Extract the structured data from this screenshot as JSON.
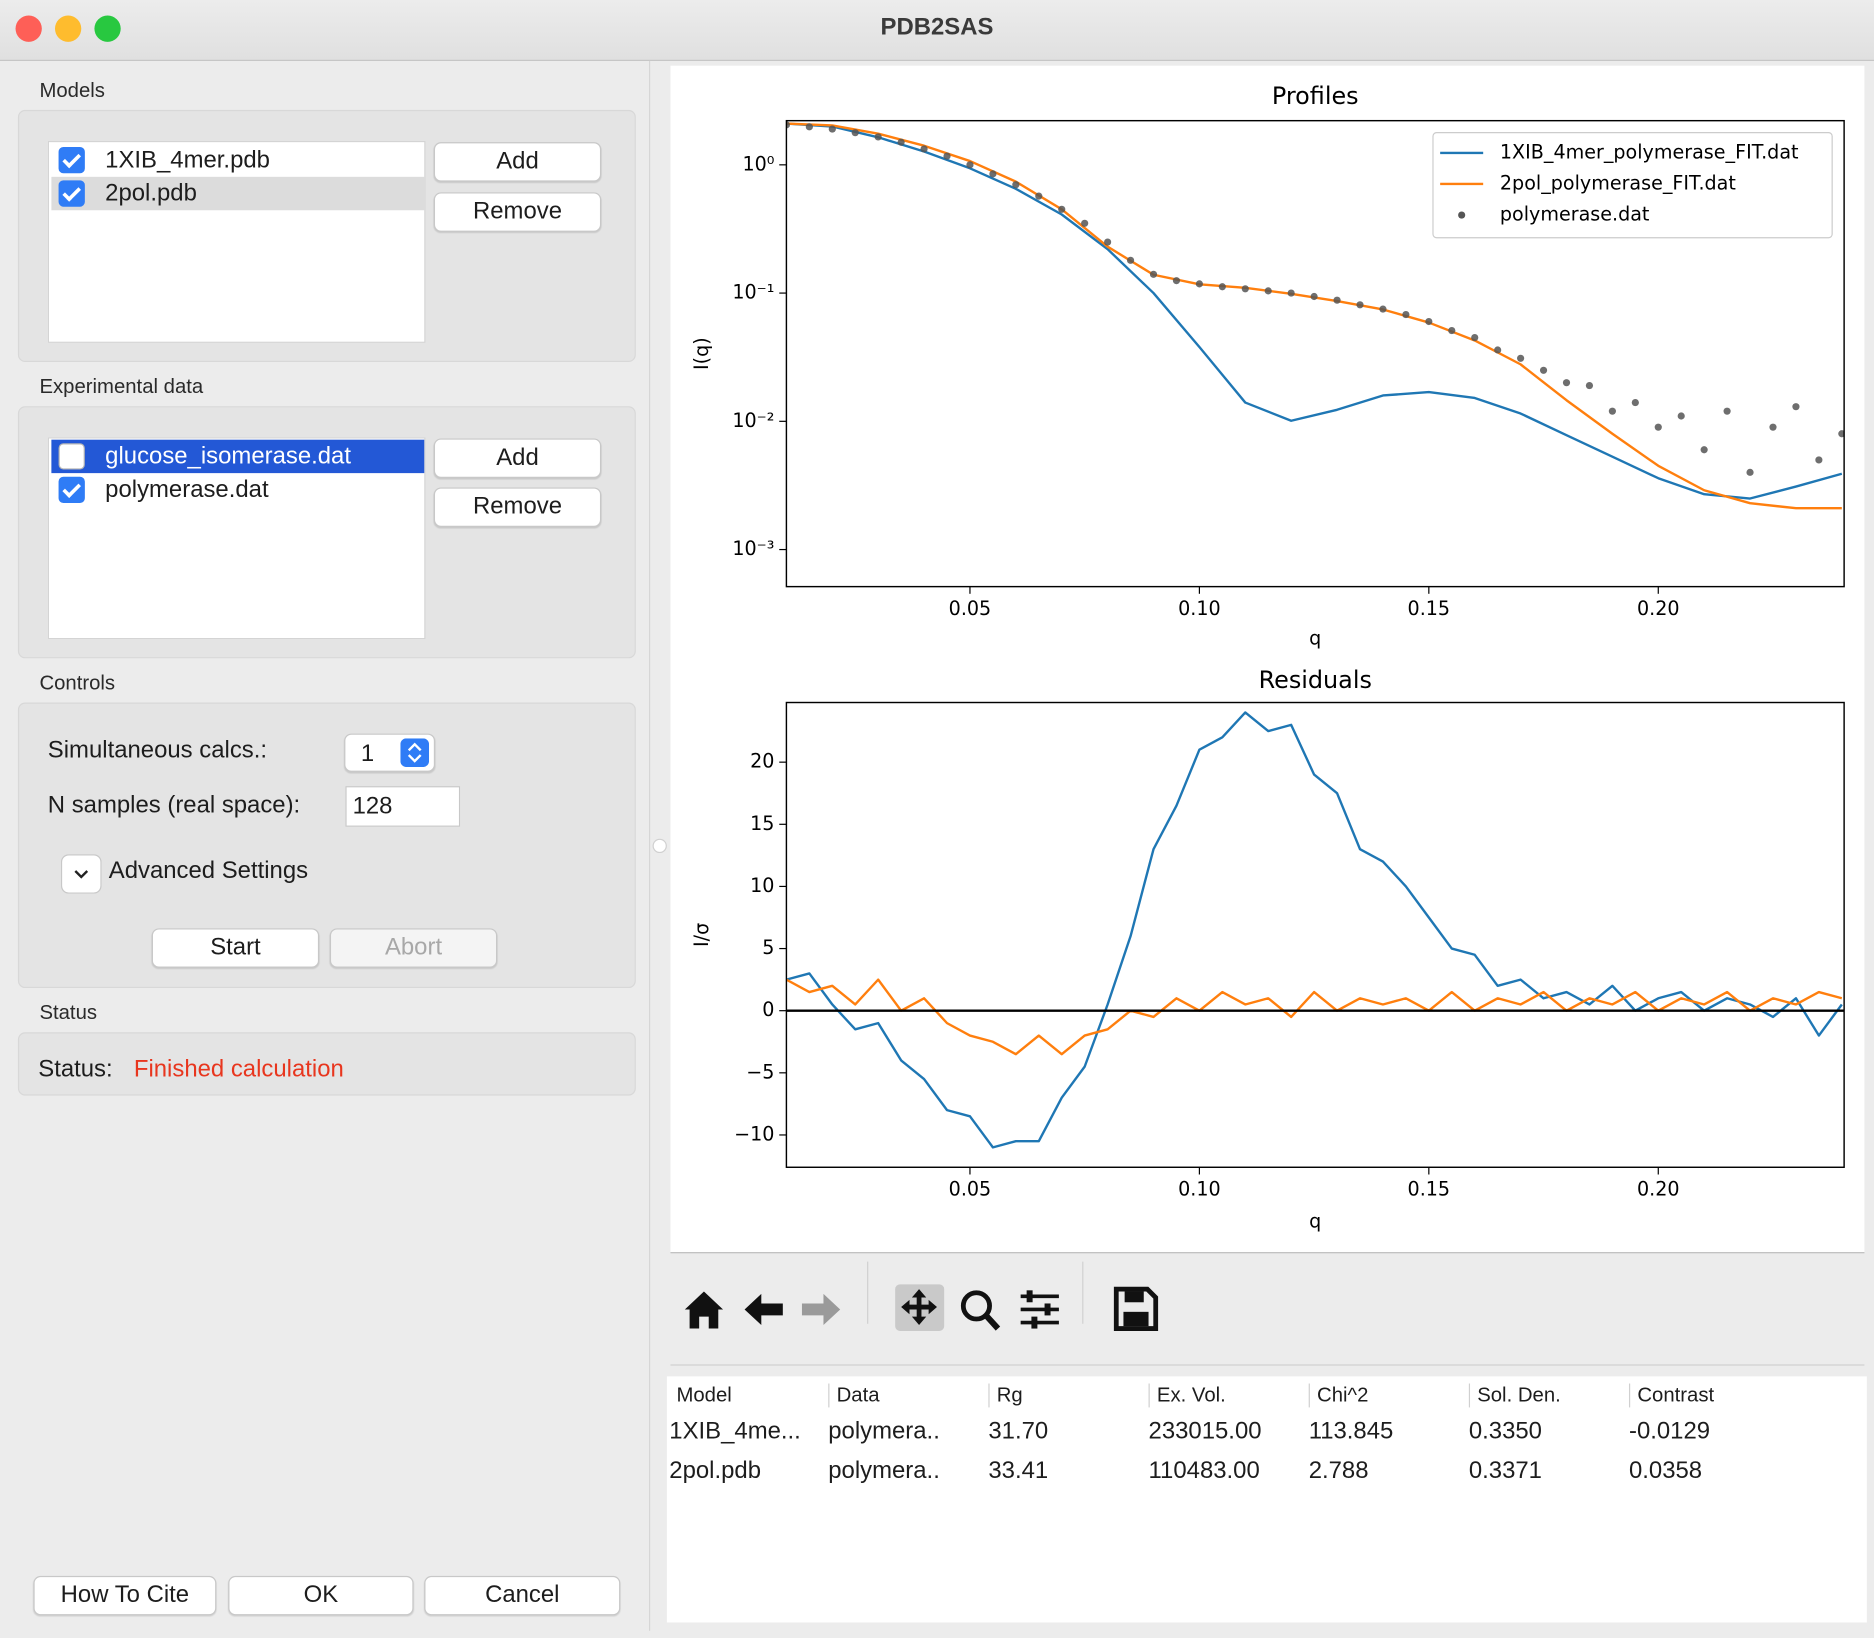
{
  "window": {
    "title": "PDB2SAS"
  },
  "models": {
    "label": "Models",
    "selected": 1,
    "items": [
      {
        "label": "1XIB_4mer.pdb",
        "checked": true
      },
      {
        "label": "2pol.pdb",
        "checked": true
      }
    ],
    "add": "Add",
    "remove": "Remove"
  },
  "experimental_data": {
    "label": "Experimental data",
    "selected": 0,
    "items": [
      {
        "label": "glucose_isomerase.dat",
        "checked": false
      },
      {
        "label": "polymerase.dat",
        "checked": true
      }
    ],
    "add": "Add",
    "remove": "Remove"
  },
  "controls": {
    "label": "Controls",
    "simultaneous_label": "Simultaneous calcs.:",
    "simultaneous_value": "1",
    "n_samples_label": "N samples (real space):",
    "n_samples_value": "128",
    "advanced": "Advanced Settings",
    "start": "Start",
    "abort": "Abort"
  },
  "status": {
    "label": "Status",
    "prefix": "Status:",
    "message": "Finished calculation"
  },
  "buttons": {
    "cite": "How To Cite",
    "ok": "OK",
    "cancel": "Cancel"
  },
  "chart_data": [
    {
      "type": "line",
      "title": "Profiles",
      "x_label": "q",
      "y_label": "I(q)",
      "log_y": true,
      "xlim": [
        0.01,
        0.2405
      ],
      "ylim": [
        0.000514,
        2.21
      ],
      "xticks": [
        0.05,
        {
          "value": 0.1,
          "label": "0.10"
        },
        0.15,
        {
          "value": 0.2,
          "label": "0.20"
        }
      ],
      "yticks": [
        {
          "value": 1,
          "label": "10⁰"
        },
        {
          "value": 0.1,
          "label": "10⁻¹"
        },
        {
          "value": 0.01,
          "label": "10⁻²"
        },
        {
          "value": 0.001,
          "label": "10⁻³"
        }
      ],
      "legend": "upper right",
      "series": [
        {
          "name": "1XIB_4mer_polymerase_FIT.dat",
          "color": "#1f77b4",
          "x": [
            0.01,
            0.02,
            0.03,
            0.04,
            0.05,
            0.06,
            0.07,
            0.08,
            0.09,
            0.1,
            0.11,
            0.12,
            0.13,
            0.14,
            0.15,
            0.16,
            0.17,
            0.18,
            0.19,
            0.2,
            0.21,
            0.22,
            0.23,
            0.24
          ],
          "values": [
            2.1,
            1.99,
            1.64,
            1.27,
            0.94,
            0.65,
            0.41,
            0.22,
            0.1,
            0.038,
            0.014,
            0.0101,
            0.0123,
            0.0159,
            0.0169,
            0.0152,
            0.0115,
            0.0078,
            0.0053,
            0.0036,
            0.0027,
            0.0025,
            0.0031,
            0.0039
          ]
        },
        {
          "name": "2pol_polymerase_FIT.dat",
          "color": "#ff7f0e",
          "x": [
            0.01,
            0.02,
            0.03,
            0.04,
            0.05,
            0.06,
            0.07,
            0.08,
            0.09,
            0.1,
            0.11,
            0.12,
            0.13,
            0.14,
            0.15,
            0.16,
            0.17,
            0.18,
            0.19,
            0.2,
            0.21,
            0.22,
            0.23,
            0.24
          ],
          "values": [
            2.1,
            2.03,
            1.75,
            1.41,
            1.07,
            0.74,
            0.45,
            0.23,
            0.139,
            0.117,
            0.11,
            0.0986,
            0.0867,
            0.0745,
            0.0589,
            0.0427,
            0.0278,
            0.0146,
            0.008,
            0.0045,
            0.0029,
            0.0023,
            0.0021,
            0.0021
          ]
        },
        {
          "name": "polymerase.dat",
          "type": "scatter",
          "color": "#555555",
          "x": [
            0.01,
            0.015,
            0.02,
            0.025,
            0.03,
            0.035,
            0.04,
            0.045,
            0.05,
            0.055,
            0.06,
            0.065,
            0.07,
            0.075,
            0.08,
            0.085,
            0.09,
            0.095,
            0.1,
            0.105,
            0.11,
            0.115,
            0.12,
            0.125,
            0.13,
            0.135,
            0.14,
            0.145,
            0.15,
            0.155,
            0.16,
            0.165,
            0.17,
            0.175,
            0.18,
            0.185,
            0.19,
            0.195,
            0.2,
            0.205,
            0.21,
            0.215,
            0.22,
            0.225,
            0.23,
            0.235,
            0.24
          ],
          "values": [
            2.05,
            1.98,
            1.9,
            1.78,
            1.65,
            1.5,
            1.33,
            1.17,
            1.0,
            0.85,
            0.7,
            0.57,
            0.45,
            0.35,
            0.25,
            0.18,
            0.14,
            0.125,
            0.118,
            0.112,
            0.108,
            0.104,
            0.1,
            0.094,
            0.088,
            0.081,
            0.075,
            0.068,
            0.06,
            0.051,
            0.045,
            0.036,
            0.031,
            0.025,
            0.02,
            0.019,
            0.012,
            0.014,
            0.009,
            0.011,
            0.006,
            0.012,
            0.004,
            0.009,
            0.013,
            0.005,
            0.008
          ]
        }
      ]
    },
    {
      "type": "line",
      "title": "Residuals",
      "x_label": "q",
      "y_label": "I/σ",
      "xlim": [
        0.01,
        0.2405
      ],
      "ylim": [
        -12.6,
        24.8
      ],
      "xticks": [
        0.05,
        {
          "value": 0.1,
          "label": "0.10"
        },
        0.15,
        {
          "value": 0.2,
          "label": "0.20"
        }
      ],
      "yticks": [
        {
          "value": -10,
          "label": "−10"
        },
        {
          "value": -5,
          "label": "−5"
        },
        0,
        5,
        10,
        15,
        20
      ],
      "hline": 0,
      "x": [
        0.01,
        0.015,
        0.02,
        0.025,
        0.03,
        0.035,
        0.04,
        0.045,
        0.05,
        0.055,
        0.06,
        0.065,
        0.07,
        0.075,
        0.08,
        0.085,
        0.09,
        0.095,
        0.1,
        0.105,
        0.11,
        0.115,
        0.12,
        0.125,
        0.13,
        0.135,
        0.14,
        0.145,
        0.15,
        0.155,
        0.16,
        0.165,
        0.17,
        0.175,
        0.18,
        0.185,
        0.19,
        0.195,
        0.2,
        0.205,
        0.21,
        0.215,
        0.22,
        0.225,
        0.23,
        0.235,
        0.24
      ],
      "series": [
        {
          "color": "#1f77b4",
          "values": [
            2.5,
            3,
            0.5,
            -1.5,
            -1,
            -4,
            -5.5,
            -8,
            -8.5,
            -11,
            -10.5,
            -10.5,
            -7,
            -4.5,
            0.5,
            6,
            13,
            16.5,
            21,
            22,
            24,
            22.5,
            23,
            19,
            17.5,
            13,
            12,
            10,
            7.5,
            5,
            4.5,
            2,
            2.5,
            1,
            1.5,
            0.5,
            2,
            0,
            1,
            1.5,
            0,
            1,
            0.5,
            -0.5,
            1,
            -2,
            0.5
          ]
        },
        {
          "color": "#ff7f0e",
          "values": [
            2.5,
            1.5,
            2,
            0.5,
            2.5,
            0,
            1,
            -1,
            -2,
            -2.5,
            -3.5,
            -2,
            -3.5,
            -2,
            -1.5,
            0,
            -0.5,
            1,
            0,
            1.5,
            0.5,
            1,
            -0.5,
            1.5,
            0,
            1,
            0.5,
            1,
            0,
            1.5,
            0,
            1,
            0.5,
            1.5,
            0,
            1,
            0.5,
            1.5,
            0,
            1,
            0.5,
            1.5,
            0,
            1,
            0.5,
            1.5,
            1
          ]
        }
      ]
    }
  ],
  "table": {
    "columns": [
      "Model",
      "Data",
      "Rg",
      "Ex. Vol.",
      "Chi^2",
      "Sol. Den.",
      "Contrast"
    ],
    "rows": [
      [
        "1XIB_4me...",
        "polymera..",
        "31.70",
        "233015.00",
        "113.845",
        "0.3350",
        "-0.0129"
      ],
      [
        "2pol.pdb",
        "polymera..",
        "33.41",
        "110483.00",
        "2.788",
        "0.3371",
        "0.0358"
      ]
    ]
  }
}
